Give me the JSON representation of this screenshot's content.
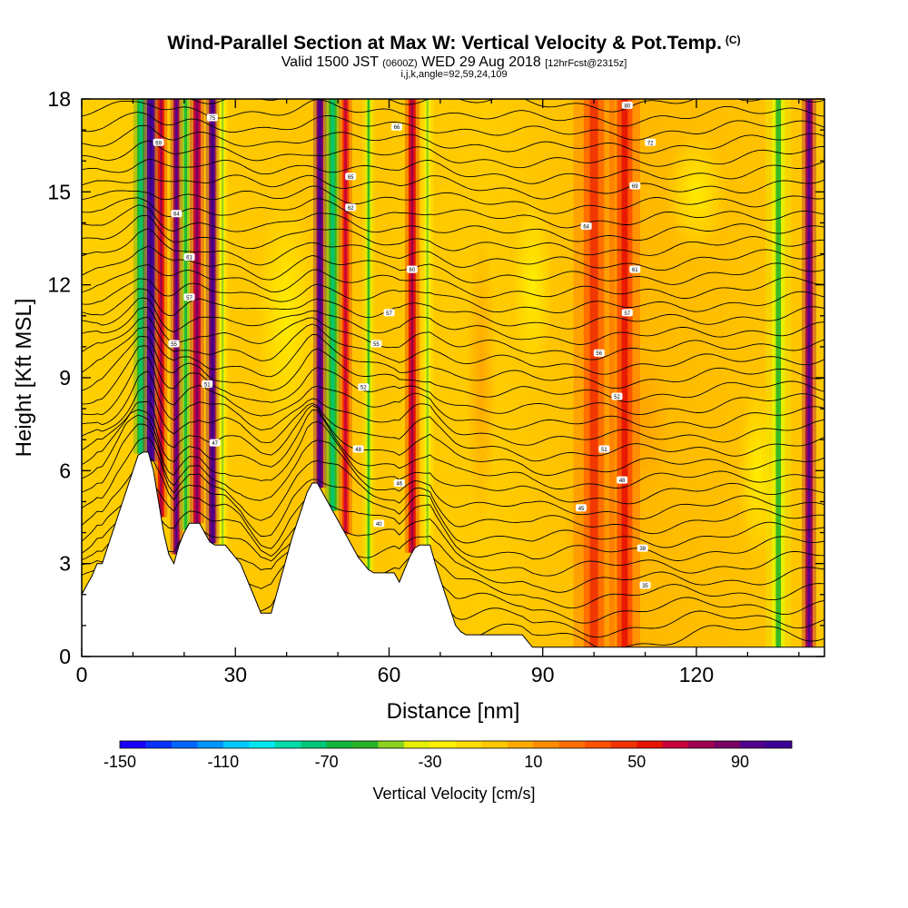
{
  "header": {
    "title": "Wind-Parallel Section at Max W: Vertical Velocity & Pot.Temp.",
    "title_tag": "(C)",
    "valid_prefix": "Valid 1500 JST",
    "valid_utc": "(0600Z)",
    "valid_date": "WED 29 Aug 2018",
    "forecast": "[12hrFcst@2315z]",
    "indices": "i,j,k,angle=92,59,24,109"
  },
  "chart_data": {
    "type": "heatmap",
    "xlabel": "Distance [nm]",
    "ylabel": "Height [Kft MSL]",
    "xlim": [
      0,
      145
    ],
    "ylim": [
      0,
      18
    ],
    "x_ticks": [
      0,
      30,
      60,
      90,
      120
    ],
    "y_ticks": [
      0,
      3,
      6,
      9,
      12,
      15,
      18
    ],
    "colorbar": {
      "label": "Vertical Velocity [cm/s]",
      "min": -150,
      "max": 110,
      "step": 10,
      "tick_values": [
        -150,
        -110,
        -70,
        -30,
        10,
        50,
        90
      ],
      "colors": [
        "#1a00ff",
        "#0a32ff",
        "#0066ff",
        "#0096ff",
        "#00c8ff",
        "#00e6f0",
        "#00dcaa",
        "#00c878",
        "#14b43c",
        "#28b428",
        "#8cd21e",
        "#e6f000",
        "#fff000",
        "#ffdc00",
        "#ffc800",
        "#ffaa00",
        "#ff8c00",
        "#ff6e00",
        "#ff5000",
        "#f03200",
        "#e61400",
        "#c8003c",
        "#a00050",
        "#780064",
        "#50008c",
        "#3c0096"
      ]
    },
    "terrain": {
      "x": [
        0,
        1,
        2,
        3,
        4,
        5,
        6,
        7,
        8,
        9,
        10,
        11,
        12,
        13,
        14,
        15,
        16,
        17,
        18,
        19,
        20,
        21,
        22,
        23,
        24,
        25,
        26,
        27,
        28,
        29,
        30,
        31,
        32,
        33,
        34,
        35,
        36,
        37,
        38,
        39,
        40,
        41,
        42,
        43,
        44,
        45,
        46,
        47,
        48,
        49,
        50,
        51,
        52,
        53,
        54,
        55,
        56,
        57,
        58,
        59,
        60,
        61,
        62,
        63,
        64,
        65,
        66,
        67,
        68,
        69,
        70,
        71,
        72,
        73,
        74,
        75,
        76,
        77,
        78,
        79,
        80,
        82,
        84,
        86,
        87,
        88,
        90,
        100,
        110,
        120,
        130,
        140,
        145
      ],
      "height_kft": [
        2.0,
        2.3,
        2.6,
        3.0,
        3.0,
        3.5,
        4.0,
        4.5,
        5.0,
        5.5,
        6.0,
        6.5,
        6.6,
        6.6,
        6.0,
        5.0,
        4.0,
        3.3,
        3.0,
        3.6,
        4.0,
        4.3,
        4.3,
        4.3,
        4.0,
        3.7,
        3.6,
        3.6,
        3.6,
        3.4,
        3.2,
        3.0,
        2.6,
        2.2,
        1.8,
        1.4,
        1.4,
        1.4,
        2.0,
        2.6,
        3.2,
        3.8,
        4.3,
        4.8,
        5.3,
        5.6,
        5.6,
        5.3,
        5.0,
        4.7,
        4.4,
        4.1,
        3.8,
        3.5,
        3.2,
        3.0,
        2.8,
        2.7,
        2.7,
        2.7,
        2.7,
        2.7,
        2.4,
        2.8,
        3.2,
        3.5,
        3.6,
        3.6,
        3.6,
        3.0,
        2.5,
        2.0,
        1.5,
        1.0,
        0.8,
        0.7,
        0.7,
        0.7,
        0.7,
        0.7,
        0.7,
        0.7,
        0.7,
        0.7,
        0.5,
        0.3,
        0.3,
        0.3,
        0.3,
        0.3,
        0.3,
        0.3,
        0.3
      ]
    },
    "w_columns": [
      {
        "x": 11.5,
        "w": -60,
        "width": 1.4
      },
      {
        "x": 13.5,
        "w": 90,
        "width": 1.5
      },
      {
        "x": 15.5,
        "w": 50,
        "width": 1.2
      },
      {
        "x": 18.5,
        "w": 70,
        "width": 1.2
      },
      {
        "x": 20.3,
        "w": -50,
        "width": 1.3
      },
      {
        "x": 22.5,
        "w": 60,
        "width": 1.4
      },
      {
        "x": 25.5,
        "w": 80,
        "width": 1.3
      },
      {
        "x": 27.5,
        "w": -30,
        "width": 1.0
      },
      {
        "x": 46.5,
        "w": 80,
        "width": 1.3
      },
      {
        "x": 49.0,
        "w": -60,
        "width": 1.5
      },
      {
        "x": 51.5,
        "w": 40,
        "width": 1.3
      },
      {
        "x": 56.0,
        "w": -40,
        "width": 1.2
      },
      {
        "x": 64.5,
        "w": 50,
        "width": 1.4
      },
      {
        "x": 67.5,
        "w": -30,
        "width": 1.2
      },
      {
        "x": 100.0,
        "w": 25,
        "width": 4.0
      },
      {
        "x": 106.0,
        "w": 30,
        "width": 3.0
      },
      {
        "x": 136.0,
        "w": -40,
        "width": 2.5
      },
      {
        "x": 142.0,
        "w": 70,
        "width": 1.4
      }
    ],
    "isentrope_labels": [
      {
        "x": 25.5,
        "y": 17.4,
        "text": "75"
      },
      {
        "x": 15.0,
        "y": 16.6,
        "text": "69"
      },
      {
        "x": 18.5,
        "y": 14.3,
        "text": "64"
      },
      {
        "x": 21.0,
        "y": 12.9,
        "text": "61"
      },
      {
        "x": 21.0,
        "y": 11.6,
        "text": "57"
      },
      {
        "x": 18.0,
        "y": 10.1,
        "text": "55"
      },
      {
        "x": 24.5,
        "y": 8.8,
        "text": "51"
      },
      {
        "x": 26.0,
        "y": 6.9,
        "text": "47"
      },
      {
        "x": 61.5,
        "y": 17.1,
        "text": "66"
      },
      {
        "x": 52.5,
        "y": 15.5,
        "text": "65"
      },
      {
        "x": 52.5,
        "y": 14.5,
        "text": "62"
      },
      {
        "x": 64.5,
        "y": 12.5,
        "text": "60"
      },
      {
        "x": 60.0,
        "y": 11.1,
        "text": "57"
      },
      {
        "x": 57.5,
        "y": 10.1,
        "text": "55"
      },
      {
        "x": 55.0,
        "y": 8.7,
        "text": "52"
      },
      {
        "x": 54.0,
        "y": 6.7,
        "text": "48"
      },
      {
        "x": 62.0,
        "y": 5.6,
        "text": "46"
      },
      {
        "x": 58.0,
        "y": 4.3,
        "text": "40"
      },
      {
        "x": 106.5,
        "y": 17.8,
        "text": "80"
      },
      {
        "x": 111.0,
        "y": 16.6,
        "text": "72"
      },
      {
        "x": 108.0,
        "y": 15.2,
        "text": "69"
      },
      {
        "x": 98.5,
        "y": 13.9,
        "text": "64"
      },
      {
        "x": 108.0,
        "y": 12.5,
        "text": "61"
      },
      {
        "x": 106.5,
        "y": 11.1,
        "text": "57"
      },
      {
        "x": 101.0,
        "y": 9.8,
        "text": "56"
      },
      {
        "x": 104.5,
        "y": 8.4,
        "text": "52"
      },
      {
        "x": 102.0,
        "y": 6.7,
        "text": "51"
      },
      {
        "x": 105.5,
        "y": 5.7,
        "text": "48"
      },
      {
        "x": 97.5,
        "y": 4.8,
        "text": "45"
      },
      {
        "x": 109.5,
        "y": 3.5,
        "text": "38"
      },
      {
        "x": 110.0,
        "y": 2.3,
        "text": "35"
      }
    ],
    "grid": false,
    "legend": "bottom"
  }
}
